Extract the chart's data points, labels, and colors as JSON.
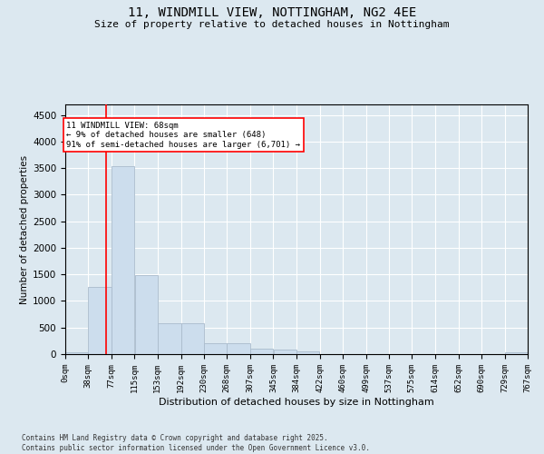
{
  "title_line1": "11, WINDMILL VIEW, NOTTINGHAM, NG2 4EE",
  "title_line2": "Size of property relative to detached houses in Nottingham",
  "xlabel": "Distribution of detached houses by size in Nottingham",
  "ylabel": "Number of detached properties",
  "bar_color": "#ccdded",
  "bar_edge_color": "#aabbcc",
  "red_line_x": 68,
  "annotation_title": "11 WINDMILL VIEW: 68sqm",
  "annotation_line2": "← 9% of detached houses are smaller (648)",
  "annotation_line3": "91% of semi-detached houses are larger (6,701) →",
  "bin_edges": [
    0,
    38,
    77,
    115,
    153,
    192,
    230,
    268,
    307,
    345,
    384,
    422,
    460,
    499,
    537,
    575,
    614,
    652,
    690,
    729,
    767
  ],
  "bar_heights": [
    30,
    1270,
    3540,
    1490,
    580,
    580,
    210,
    210,
    100,
    80,
    50,
    5,
    0,
    0,
    0,
    0,
    0,
    0,
    0,
    40
  ],
  "ylim": [
    0,
    4700
  ],
  "yticks": [
    0,
    500,
    1000,
    1500,
    2000,
    2500,
    3000,
    3500,
    4000,
    4500
  ],
  "bg_color": "#dce8f0",
  "plot_bg_color": "#dce8f0",
  "footnote": "Contains HM Land Registry data © Crown copyright and database right 2025.\nContains public sector information licensed under the Open Government Licence v3.0.",
  "tick_labels": [
    "0sqm",
    "38sqm",
    "77sqm",
    "115sqm",
    "153sqm",
    "192sqm",
    "230sqm",
    "268sqm",
    "307sqm",
    "345sqm",
    "384sqm",
    "422sqm",
    "460sqm",
    "499sqm",
    "537sqm",
    "575sqm",
    "614sqm",
    "652sqm",
    "690sqm",
    "729sqm",
    "767sqm"
  ]
}
